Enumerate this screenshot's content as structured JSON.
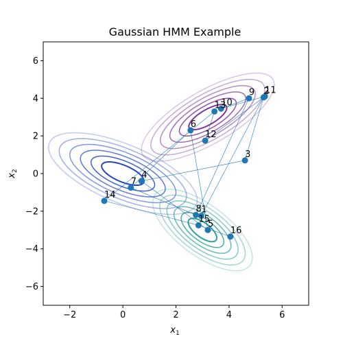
{
  "chart_data": {
    "type": "scatter",
    "title": "Gaussian HMM Example",
    "xlabel_main": "x",
    "xlabel_sub": "1",
    "ylabel_main": "x",
    "ylabel_sub": "2",
    "xlim": [
      -3,
      7
    ],
    "ylim": [
      -7,
      7
    ],
    "xticks": [
      -2,
      0,
      2,
      4,
      6
    ],
    "yticks": [
      -6,
      -4,
      -2,
      0,
      2,
      4,
      6
    ],
    "grid": false,
    "point_color": "#1f77b4",
    "path_color": "#1f77b4",
    "points": [
      {
        "label": "1",
        "x": 2.95,
        "y": -2.25
      },
      {
        "label": "2",
        "x": 5.3,
        "y": 4.05
      },
      {
        "label": "3",
        "x": 4.6,
        "y": 0.7
      },
      {
        "label": "4",
        "x": 0.7,
        "y": -0.4
      },
      {
        "label": "5",
        "x": 3.2,
        "y": -3.0
      },
      {
        "label": "6",
        "x": 2.55,
        "y": 2.3
      },
      {
        "label": "7",
        "x": 0.3,
        "y": -0.75
      },
      {
        "label": "8",
        "x": 2.75,
        "y": -2.2
      },
      {
        "label": "9",
        "x": 4.75,
        "y": 4.0
      },
      {
        "label": "10",
        "x": 3.7,
        "y": 3.45
      },
      {
        "label": "11",
        "x": 5.35,
        "y": 4.1
      },
      {
        "label": "12",
        "x": 3.1,
        "y": 1.75
      },
      {
        "label": "13",
        "x": 3.45,
        "y": 3.3
      },
      {
        "label": "14",
        "x": -0.7,
        "y": -1.45
      },
      {
        "label": "15",
        "x": 2.85,
        "y": -2.75
      },
      {
        "label": "16",
        "x": 4.05,
        "y": -3.35
      }
    ],
    "components": [
      {
        "mean": [
          0.0,
          0.0
        ],
        "cov": [
          [
            1.0,
            -0.5
          ],
          [
            -0.5,
            0.6
          ]
        ],
        "color": "#2244cc"
      },
      {
        "mean": [
          3.2,
          3.0
        ],
        "cov": [
          [
            0.8,
            0.55
          ],
          [
            0.55,
            0.7
          ]
        ],
        "color": "#8033a0"
      },
      {
        "mean": [
          3.0,
          -3.0
        ],
        "cov": [
          [
            0.45,
            -0.35
          ],
          [
            -0.35,
            0.6
          ]
        ],
        "color": "#2aa19a"
      }
    ],
    "contour_scales": [
      0.8,
      1.2,
      1.6,
      2.0,
      2.4,
      2.8
    ]
  }
}
